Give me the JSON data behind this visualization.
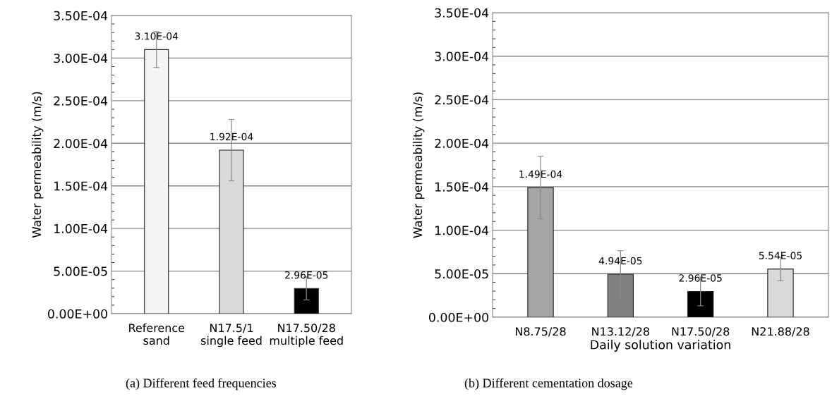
{
  "chart_data": [
    {
      "type": "bar",
      "title": "(a) Different feed frequencies",
      "ylabel": "Water permeability (m/s)",
      "categories": [
        "Reference\nsand",
        "N17.5/1\nsingle feed",
        "N17.50/28\nmultiple feed"
      ],
      "values": [
        0.00031,
        0.000192,
        2.96e-05
      ],
      "errors": [
        2.1e-05,
        3.6e-05,
        1.35e-05
      ],
      "value_labels": [
        "3.10E-04",
        "1.92E-04",
        "2.96E-05"
      ],
      "colors": [
        "#f4f4f4",
        "#d9d9d9",
        "#000000"
      ],
      "ylim": [
        0,
        0.00035
      ],
      "yticks": [
        {
          "value": 0,
          "label": "0.00E+00"
        },
        {
          "value": 5e-05,
          "label": "5.00E-05"
        },
        {
          "value": 0.0001,
          "label": "1.00E-04"
        },
        {
          "value": 0.00015,
          "label": "1.50E-04"
        },
        {
          "value": 0.0002,
          "label": "2.00E-04"
        },
        {
          "value": 0.00025,
          "label": "2.50E-04"
        },
        {
          "value": 0.0003,
          "label": "3.00E-04"
        },
        {
          "value": 0.00035,
          "label": "3.50E-04"
        }
      ],
      "grid": "y",
      "legend": false
    },
    {
      "type": "bar",
      "title": "(b) Different cementation dosage",
      "ylabel": "Water permeability (m/s)",
      "xlabel": "Daily solution variation",
      "categories": [
        "N8.75/28",
        "N13.12/28",
        "N17.50/28",
        "N21.88/28"
      ],
      "values": [
        0.000149,
        4.94e-05,
        2.96e-05,
        5.54e-05
      ],
      "errors": [
        3.6e-05,
        2.7e-05,
        1.65e-05,
        1.35e-05
      ],
      "value_labels": [
        "1.49E-04",
        "4.94E-05",
        "2.96E-05",
        "5.54E-05"
      ],
      "colors": [
        "#a6a6a6",
        "#808080",
        "#000000",
        "#d9d9d9"
      ],
      "ylim": [
        0,
        0.00035
      ],
      "yticks": [
        {
          "value": 0,
          "label": "0.00E+00"
        },
        {
          "value": 5e-05,
          "label": "5.00E-05"
        },
        {
          "value": 0.0001,
          "label": "1.00E-04"
        },
        {
          "value": 0.00015,
          "label": "1.50E-04"
        },
        {
          "value": 0.0002,
          "label": "2.00E-04"
        },
        {
          "value": 0.00025,
          "label": "2.50E-04"
        },
        {
          "value": 0.0003,
          "label": "3.00E-04"
        },
        {
          "value": 0.00035,
          "label": "3.50E-04"
        }
      ],
      "grid": "y",
      "legend": false
    }
  ]
}
